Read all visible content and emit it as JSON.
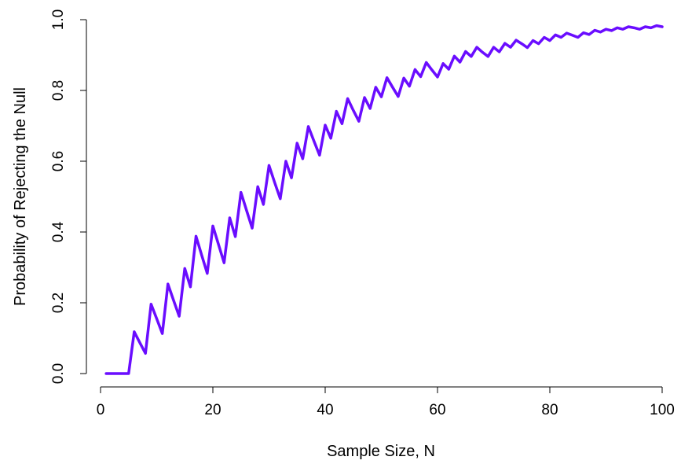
{
  "chart_data": {
    "type": "line",
    "title": "",
    "xlabel": "Sample Size, N",
    "ylabel": "Probability of Rejecting the Null",
    "xlim": [
      1,
      100
    ],
    "ylim": [
      0,
      1
    ],
    "x_ticks": [
      0,
      20,
      40,
      60,
      80,
      100
    ],
    "x_tick_labels": [
      "0",
      "20",
      "40",
      "60",
      "80",
      "100"
    ],
    "y_ticks": [
      0,
      0.2,
      0.4,
      0.6,
      0.8,
      1
    ],
    "y_tick_labels": [
      "0.0",
      "0.2",
      "0.4",
      "0.6",
      "0.8",
      "1.0"
    ],
    "grid": false,
    "legend": "none",
    "series": [
      {
        "color": "#6a0dff",
        "x": [
          1,
          2,
          3,
          4,
          5,
          6,
          7,
          8,
          9,
          10,
          11,
          12,
          13,
          14,
          15,
          16,
          17,
          18,
          19,
          20,
          21,
          22,
          23,
          24,
          25,
          26,
          27,
          28,
          29,
          30,
          31,
          32,
          33,
          34,
          35,
          36,
          37,
          38,
          39,
          40,
          41,
          42,
          43,
          44,
          45,
          46,
          47,
          48,
          49,
          50,
          51,
          52,
          53,
          54,
          55,
          56,
          57,
          58,
          59,
          60,
          61,
          62,
          63,
          64,
          65,
          66,
          67,
          68,
          69,
          70,
          71,
          72,
          73,
          74,
          75,
          76,
          77,
          78,
          79,
          80,
          81,
          82,
          83,
          84,
          85,
          86,
          87,
          88,
          89,
          90,
          91,
          92,
          93,
          94,
          95,
          96,
          97,
          98,
          99,
          100
        ],
        "y": [
          0,
          0,
          0,
          0,
          0,
          0.118,
          0.087,
          0.057,
          0.196,
          0.155,
          0.113,
          0.253,
          0.207,
          0.162,
          0.297,
          0.245,
          0.388,
          0.335,
          0.283,
          0.417,
          0.365,
          0.313,
          0.44,
          0.387,
          0.512,
          0.461,
          0.411,
          0.528,
          0.478,
          0.588,
          0.54,
          0.494,
          0.6,
          0.553,
          0.651,
          0.607,
          0.698,
          0.657,
          0.617,
          0.702,
          0.665,
          0.741,
          0.706,
          0.777,
          0.744,
          0.713,
          0.78,
          0.749,
          0.809,
          0.782,
          0.836,
          0.809,
          0.783,
          0.835,
          0.812,
          0.859,
          0.839,
          0.879,
          0.858,
          0.838,
          0.876,
          0.86,
          0.897,
          0.88,
          0.91,
          0.896,
          0.922,
          0.908,
          0.896,
          0.922,
          0.909,
          0.933,
          0.922,
          0.942,
          0.932,
          0.921,
          0.941,
          0.932,
          0.95,
          0.941,
          0.957,
          0.95,
          0.962,
          0.956,
          0.95,
          0.963,
          0.958,
          0.97,
          0.965,
          0.973,
          0.969,
          0.977,
          0.973,
          0.98,
          0.977,
          0.973,
          0.98,
          0.977,
          0.983,
          0.98
        ]
      }
    ]
  }
}
